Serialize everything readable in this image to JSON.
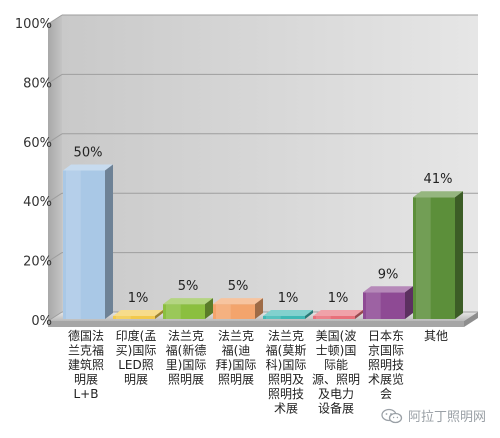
{
  "chart_data": {
    "type": "bar",
    "categories": [
      "德国法兰克福建筑照明展L+B",
      "印度(孟买)国际LED照明展",
      "法兰克福(新德里)国际照明展",
      "法兰克福(迪拜)国际照明展",
      "法兰克福(莫斯科)国际照明及照明技术展",
      "美国(波士顿)国际能源、照明及电力设备展",
      "日本东京国际照明技术展览会",
      "其他"
    ],
    "category_lines": [
      [
        "德国法",
        "兰克福",
        "建筑照",
        "明展",
        "L+B"
      ],
      [
        "印度(孟",
        "买)国际",
        "LED照",
        "明展"
      ],
      [
        "法兰克",
        "福(新德",
        "里)国际",
        "照明展"
      ],
      [
        "法兰克",
        "福(迪",
        "拜)国际",
        "照明展"
      ],
      [
        "法兰克",
        "福(莫斯",
        "科)国际",
        "照明及",
        "照明技",
        "术展"
      ],
      [
        "美国(波",
        "士顿)国",
        "际能",
        "源、照明",
        "及电力",
        "设备展"
      ],
      [
        "日本东",
        "京国际",
        "照明技",
        "术展览",
        "会"
      ],
      [
        "其他"
      ]
    ],
    "values": [
      50,
      1,
      5,
      5,
      1,
      1,
      9,
      41
    ],
    "data_labels": [
      "50%",
      "1%",
      "5%",
      "5%",
      "1%",
      "1%",
      "9%",
      "41%"
    ],
    "ylim": [
      0,
      100
    ],
    "yticks": [
      "0%",
      "20%",
      "40%",
      "60%",
      "80%",
      "100%"
    ],
    "grid": true,
    "colors": [
      "#a9c8e6",
      "#f2c94c",
      "#8bbf3f",
      "#f3a46c",
      "#3fb8b4",
      "#e8707a",
      "#8e4a94",
      "#5c8f3a"
    ]
  },
  "watermark": {
    "text": "阿拉丁照明网",
    "icon": "wechat-icon"
  }
}
